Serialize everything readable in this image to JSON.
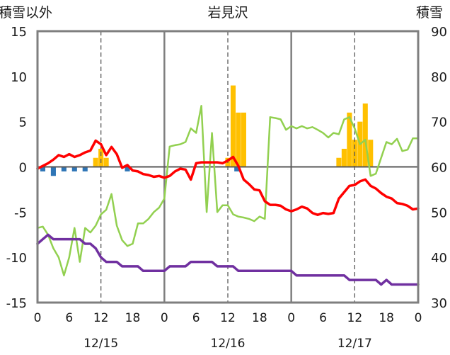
{
  "chart_data": {
    "type": "line",
    "title": "岩見沢",
    "left_axis_label": "積雪以外",
    "right_axis_label": "積雪",
    "left_ylim": [
      -15,
      15
    ],
    "left_yticks": [
      15,
      10,
      5,
      0,
      -5,
      -10,
      -15
    ],
    "right_ylim": [
      30,
      90
    ],
    "right_yticks": [
      90,
      80,
      70,
      60,
      50,
      40,
      30
    ],
    "x_range": [
      0,
      72
    ],
    "x_tick_values": [
      0,
      6,
      12,
      18,
      24,
      30,
      36,
      42,
      48,
      54,
      60,
      66,
      72
    ],
    "x_tick_labels": [
      "0",
      "6",
      "12",
      "18",
      "0",
      "6",
      "12",
      "18",
      "0",
      "6",
      "12",
      "18",
      "0"
    ],
    "day_separators": [
      24,
      48
    ],
    "dashed_lines": [
      12,
      36,
      60
    ],
    "date_labels": [
      {
        "x": 12,
        "text": "12/15"
      },
      {
        "x": 36,
        "text": "12/16"
      },
      {
        "x": 60,
        "text": "12/17"
      }
    ],
    "colors": {
      "axis": "#7f7f7f",
      "zero_line": "#595959",
      "dashed": "#595959",
      "temperature": "#ff0000",
      "snow_depth": "#7030a0",
      "green_line": "#92d050",
      "precip": "#ffc000",
      "negative_bar": "#2e75b6"
    },
    "bars": [
      {
        "x": 1,
        "value": -0.5,
        "color": "negative_bar"
      },
      {
        "x": 3,
        "value": -1.0,
        "color": "negative_bar"
      },
      {
        "x": 5,
        "value": -0.5,
        "color": "negative_bar"
      },
      {
        "x": 7,
        "value": -0.5,
        "color": "negative_bar"
      },
      {
        "x": 9,
        "value": -0.5,
        "color": "negative_bar"
      },
      {
        "x": 11,
        "value": 1.0,
        "color": "precip"
      },
      {
        "x": 12,
        "value": 2.0,
        "color": "precip"
      },
      {
        "x": 13,
        "value": 1.0,
        "color": "precip"
      },
      {
        "x": 17,
        "value": -0.5,
        "color": "negative_bar"
      },
      {
        "x": 36,
        "value": 1.0,
        "color": "precip"
      },
      {
        "x": 37,
        "value": 9.0,
        "color": "precip"
      },
      {
        "x": 37.7,
        "value": -0.5,
        "color": "negative_bar"
      },
      {
        "x": 38,
        "value": 6.0,
        "color": "precip"
      },
      {
        "x": 39,
        "value": 6.0,
        "color": "precip"
      },
      {
        "x": 57,
        "value": 1.0,
        "color": "precip"
      },
      {
        "x": 58,
        "value": 2.0,
        "color": "precip"
      },
      {
        "x": 59,
        "value": 6.0,
        "color": "precip"
      },
      {
        "x": 60,
        "value": 3.0,
        "color": "precip"
      },
      {
        "x": 61,
        "value": 5.0,
        "color": "precip"
      },
      {
        "x": 62,
        "value": 7.0,
        "color": "precip"
      },
      {
        "x": 63,
        "value": 3.0,
        "color": "precip"
      }
    ],
    "series": [
      {
        "key": "temperature",
        "axis": "left",
        "color": "temperature",
        "width": 3.5,
        "x": [
          0,
          1,
          2,
          3,
          4,
          5,
          6,
          7,
          8,
          9,
          10,
          11,
          12,
          13,
          14,
          15,
          16,
          17,
          18,
          19,
          20,
          21,
          22,
          23,
          24,
          25,
          26,
          27,
          28,
          29,
          30,
          31,
          32,
          33,
          34,
          35,
          36,
          37,
          38,
          39,
          40,
          41,
          42,
          43,
          44,
          45,
          46,
          47,
          48,
          49,
          50,
          51,
          52,
          53,
          54,
          55,
          56,
          57,
          58,
          59,
          60,
          61,
          62,
          63,
          64,
          65,
          66,
          67,
          68,
          69,
          70,
          71,
          72
        ],
        "y": [
          -0.2,
          0.1,
          0.4,
          0.8,
          1.3,
          1.1,
          1.4,
          1.1,
          1.3,
          1.6,
          1.8,
          2.9,
          2.5,
          1.3,
          2.2,
          1.4,
          -0.1,
          0.2,
          -0.4,
          -0.5,
          -0.8,
          -0.9,
          -1.1,
          -1.0,
          -1.2,
          -1.0,
          -0.5,
          -0.2,
          -0.3,
          -1.4,
          0.4,
          0.5,
          0.5,
          0.5,
          0.5,
          0.4,
          0.7,
          1.1,
          0.1,
          -1.4,
          -1.9,
          -2.5,
          -2.6,
          -3.8,
          -4.2,
          -4.2,
          -4.3,
          -4.7,
          -4.9,
          -4.7,
          -4.4,
          -4.6,
          -5.1,
          -5.3,
          -5.1,
          -5.2,
          -5.1,
          -3.5,
          -2.8,
          -2.1,
          -2.0,
          -1.6,
          -1.4,
          -2.1,
          -2.4,
          -2.9,
          -3.3,
          -3.5,
          -4.0,
          -4.1,
          -4.3,
          -4.7,
          -4.6
        ]
      },
      {
        "key": "green_line",
        "axis": "right",
        "color": "green_line",
        "width": 2.5,
        "x": [
          0,
          1,
          2,
          3,
          4,
          5,
          6,
          7,
          8,
          9,
          10,
          11,
          12,
          13,
          14,
          15,
          16,
          17,
          18,
          19,
          20,
          21,
          22,
          23,
          24,
          25,
          26,
          27,
          28,
          29,
          30,
          31,
          32,
          33,
          34,
          35,
          36,
          37,
          38,
          39,
          40,
          41,
          42,
          43,
          44,
          45,
          46,
          47,
          48,
          49,
          50,
          51,
          52,
          53,
          54,
          55,
          56,
          57,
          58,
          59,
          60,
          61,
          62,
          63,
          64,
          65,
          66,
          67,
          68,
          69,
          70,
          71,
          72
        ],
        "y": [
          46.5,
          46.8,
          45,
          42,
          40,
          36,
          40,
          46.5,
          39,
          46.5,
          45.5,
          47,
          49.5,
          50.5,
          54,
          47,
          43.8,
          42.5,
          43,
          47.5,
          47.5,
          48.5,
          50,
          51,
          53,
          64.5,
          64.8,
          65,
          65.5,
          68.5,
          67.5,
          73.5,
          50,
          67.5,
          50,
          51.5,
          51.5,
          49.5,
          49,
          48.8,
          48.5,
          48,
          49,
          48.5,
          71,
          70.8,
          70.5,
          68.2,
          69,
          68.5,
          69,
          68.5,
          68.8,
          68.2,
          67.5,
          66.5,
          67.5,
          67.2,
          70.5,
          71,
          68.5,
          65,
          66,
          58,
          58.5,
          62,
          65.5,
          65,
          66.2,
          63.5,
          63.8,
          66.3,
          66.3
        ]
      },
      {
        "key": "snow_depth",
        "axis": "right",
        "color": "snow_depth",
        "width": 3.5,
        "x": [
          0,
          1,
          2,
          3,
          4,
          5,
          6,
          7,
          8,
          9,
          10,
          11,
          12,
          13,
          14,
          15,
          16,
          17,
          18,
          19,
          20,
          21,
          22,
          23,
          24,
          25,
          26,
          27,
          28,
          29,
          30,
          31,
          32,
          33,
          34,
          35,
          36,
          37,
          38,
          39,
          40,
          41,
          42,
          43,
          44,
          45,
          46,
          47,
          48,
          49,
          50,
          51,
          52,
          53,
          54,
          55,
          56,
          57,
          58,
          59,
          60,
          61,
          62,
          63,
          64,
          65,
          66,
          67,
          68,
          69,
          70,
          71,
          72
        ],
        "y": [
          43,
          44,
          45,
          44,
          44,
          44,
          44,
          44,
          44,
          43,
          43,
          42,
          40,
          39,
          39,
          39,
          38,
          38,
          38,
          38,
          37,
          37,
          37,
          37,
          37,
          38,
          38,
          38,
          38,
          39,
          39,
          39,
          39,
          39,
          38,
          38,
          38,
          38,
          37,
          37,
          37,
          37,
          37,
          37,
          37,
          37,
          37,
          37,
          37,
          36,
          36,
          36,
          36,
          36,
          36,
          36,
          36,
          36,
          36,
          35,
          35,
          35,
          35,
          35,
          35,
          34,
          35,
          34,
          34,
          34,
          34,
          34,
          34
        ]
      }
    ]
  }
}
